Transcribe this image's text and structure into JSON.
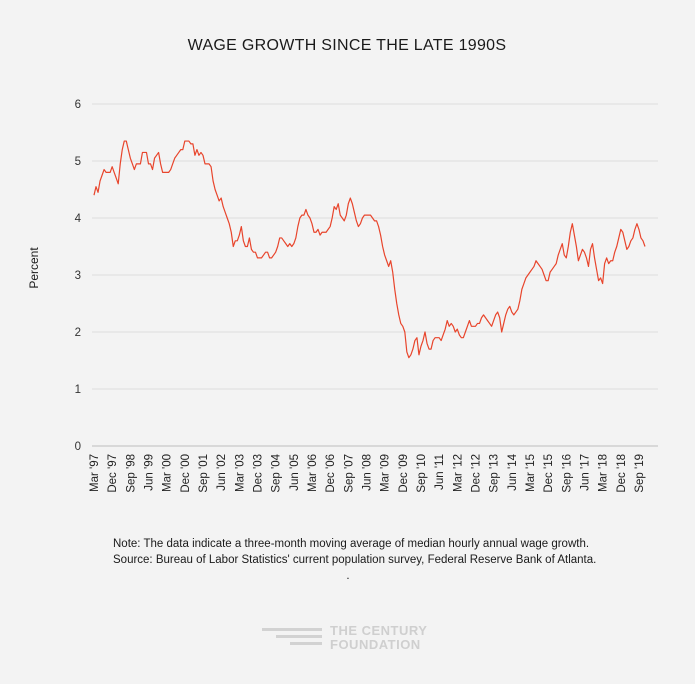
{
  "chart_data": {
    "type": "line",
    "title": "WAGE GROWTH SINCE THE LATE 1990S",
    "xlabel": "",
    "ylabel": "Percent",
    "ylim": [
      0,
      6
    ],
    "yticks": [
      "0",
      "1",
      "2",
      "3",
      "4",
      "5",
      "6"
    ],
    "grid": true,
    "line_color": "#e8452c",
    "xtick_labels": [
      "Mar '97",
      "Dec '97",
      "Sep '98",
      "Jun '99",
      "Mar '00",
      "Dec '00",
      "Sep '01",
      "Jun '02",
      "Mar '03",
      "Dec '03",
      "Sep '04",
      "Jun '05",
      "Mar '06",
      "Dec '06",
      "Sep '07",
      "Jun '08",
      "Mar '09",
      "Dec '09",
      "Sep '10",
      "Jun '11",
      "Mar '12",
      "Dec '12",
      "Sep '13",
      "Jun '14",
      "Mar '15",
      "Dec '15",
      "Sep '16",
      "Jun '17",
      "Mar '18",
      "Dec '18",
      "Sep '19"
    ],
    "series": [
      {
        "name": "Median hourly annual wage growth (3-month moving average)",
        "start": "Mar 1997",
        "interval": "month",
        "values": [
          4.4,
          4.55,
          4.45,
          4.65,
          4.75,
          4.85,
          4.8,
          4.8,
          4.8,
          4.9,
          4.8,
          4.7,
          4.6,
          4.95,
          5.2,
          5.35,
          5.35,
          5.2,
          5.05,
          4.95,
          4.85,
          4.95,
          4.95,
          4.95,
          5.15,
          5.15,
          5.15,
          4.95,
          4.95,
          4.85,
          5.05,
          5.1,
          5.15,
          4.95,
          4.8,
          4.8,
          4.8,
          4.8,
          4.85,
          4.95,
          5.05,
          5.1,
          5.15,
          5.2,
          5.2,
          5.35,
          5.35,
          5.35,
          5.3,
          5.3,
          5.1,
          5.2,
          5.1,
          5.15,
          5.1,
          4.95,
          4.95,
          4.95,
          4.9,
          4.65,
          4.5,
          4.4,
          4.3,
          4.35,
          4.2,
          4.1,
          4.0,
          3.9,
          3.75,
          3.5,
          3.6,
          3.6,
          3.7,
          3.85,
          3.6,
          3.5,
          3.5,
          3.65,
          3.45,
          3.4,
          3.4,
          3.3,
          3.3,
          3.3,
          3.35,
          3.4,
          3.4,
          3.3,
          3.3,
          3.35,
          3.4,
          3.5,
          3.65,
          3.65,
          3.6,
          3.55,
          3.5,
          3.55,
          3.5,
          3.55,
          3.65,
          3.85,
          4.0,
          4.05,
          4.05,
          4.15,
          4.05,
          4.0,
          3.9,
          3.75,
          3.75,
          3.8,
          3.7,
          3.75,
          3.75,
          3.75,
          3.8,
          3.85,
          4.0,
          4.2,
          4.15,
          4.25,
          4.05,
          4.0,
          3.95,
          4.05,
          4.25,
          4.35,
          4.25,
          4.1,
          3.95,
          3.85,
          3.9,
          4.0,
          4.05,
          4.05,
          4.05,
          4.05,
          4.0,
          3.95,
          3.95,
          3.85,
          3.7,
          3.5,
          3.35,
          3.25,
          3.15,
          3.25,
          3.05,
          2.75,
          2.5,
          2.3,
          2.15,
          2.1,
          2.0,
          1.65,
          1.55,
          1.6,
          1.7,
          1.85,
          1.9,
          1.6,
          1.75,
          1.85,
          2.0,
          1.8,
          1.7,
          1.7,
          1.85,
          1.9,
          1.9,
          1.9,
          1.85,
          1.95,
          2.05,
          2.2,
          2.1,
          2.15,
          2.1,
          2.0,
          2.05,
          1.95,
          1.9,
          1.9,
          2.0,
          2.1,
          2.2,
          2.1,
          2.1,
          2.1,
          2.15,
          2.15,
          2.25,
          2.3,
          2.25,
          2.2,
          2.15,
          2.1,
          2.2,
          2.3,
          2.35,
          2.25,
          2.0,
          2.15,
          2.3,
          2.4,
          2.45,
          2.35,
          2.3,
          2.35,
          2.4,
          2.55,
          2.75,
          2.85,
          2.95,
          3.0,
          3.05,
          3.1,
          3.15,
          3.25,
          3.2,
          3.15,
          3.1,
          3.0,
          2.9,
          2.9,
          3.05,
          3.1,
          3.15,
          3.2,
          3.35,
          3.45,
          3.55,
          3.35,
          3.3,
          3.5,
          3.75,
          3.9,
          3.7,
          3.5,
          3.25,
          3.35,
          3.45,
          3.4,
          3.3,
          3.15,
          3.45,
          3.55,
          3.3,
          3.1,
          2.9,
          2.95,
          2.85,
          3.2,
          3.3,
          3.2,
          3.25,
          3.25,
          3.4,
          3.5,
          3.65,
          3.8,
          3.75,
          3.6,
          3.45,
          3.5,
          3.6,
          3.65,
          3.8,
          3.9,
          3.8,
          3.65,
          3.6,
          3.5
        ]
      }
    ]
  },
  "notes": {
    "line1": "Note: The data indicate a three-month moving average of median hourly annual wage growth.",
    "line2": "Source: Bureau of Labor Statistics' current population survey, Federal Reserve Bank of Atlanta.",
    "line3": "."
  },
  "logo": {
    "line1": "THE CENTURY",
    "line2": "FOUNDATION"
  }
}
